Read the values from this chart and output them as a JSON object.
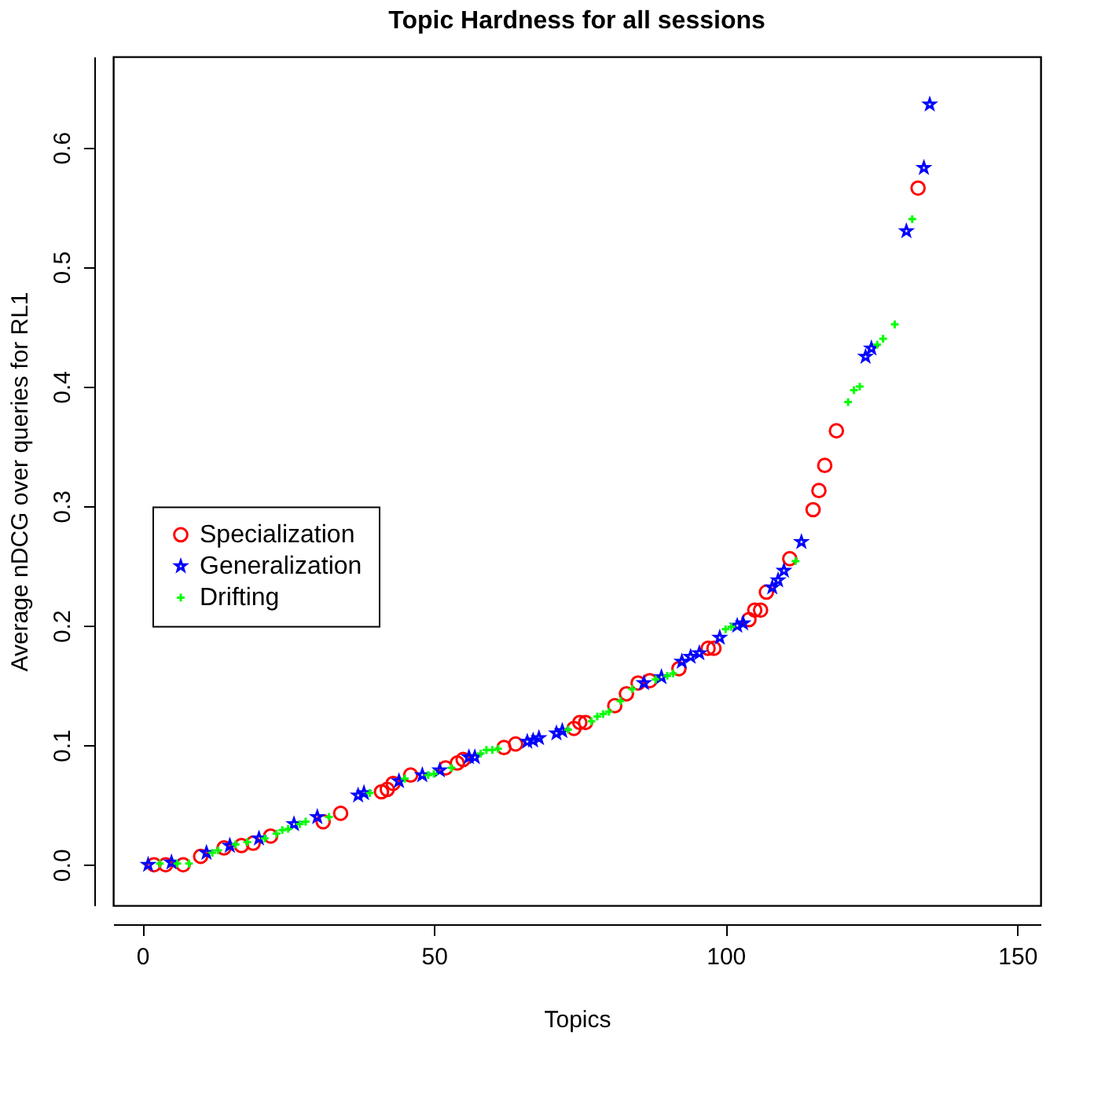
{
  "chart_data": {
    "type": "scatter",
    "title": "Topic Hardness for all sessions",
    "xlabel": "Topics",
    "ylabel": "Average nDCG over queries for RL1",
    "xlim": [
      -5,
      154
    ],
    "xticks": [
      0,
      50,
      100,
      150
    ],
    "ylim": [
      -0.034,
      0.676
    ],
    "yticks": [
      {
        "value": 0,
        "label": "0.0"
      },
      0.1,
      0.2,
      0.3,
      0.4,
      0.5,
      0.6
    ],
    "grid": false,
    "legend": "left",
    "series": [
      {
        "name": "Specialization",
        "color": "#ff0000",
        "marker": "circle",
        "x": [
          2,
          4,
          7,
          10,
          14,
          17,
          19,
          22,
          31,
          34,
          41,
          42,
          43,
          46,
          52,
          54,
          55,
          62,
          64,
          74,
          75,
          76,
          81,
          83,
          85,
          87,
          92,
          97,
          98,
          104,
          105,
          106,
          107,
          111,
          115,
          116,
          117,
          119,
          133
        ],
        "values": [
          0.0,
          0.0,
          0.0,
          0.007,
          0.014,
          0.016,
          0.018,
          0.024,
          0.036,
          0.043,
          0.061,
          0.063,
          0.068,
          0.075,
          0.081,
          0.085,
          0.088,
          0.098,
          0.101,
          0.114,
          0.119,
          0.119,
          0.133,
          0.143,
          0.152,
          0.154,
          0.164,
          0.181,
          0.181,
          0.205,
          0.213,
          0.213,
          0.228,
          0.256,
          0.297,
          0.313,
          0.334,
          0.363,
          0.566
        ]
      },
      {
        "name": "Generalization",
        "color": "#0000ff",
        "marker": "star",
        "x": [
          1,
          5,
          11,
          15,
          20,
          26,
          30,
          37,
          38,
          44,
          48,
          51,
          56,
          57,
          66,
          67,
          68,
          71,
          72,
          86,
          89,
          92.5,
          94,
          95.5,
          99,
          102,
          103,
          108,
          109,
          110,
          113,
          124,
          125,
          131,
          134,
          135
        ],
        "values": [
          0.0,
          0.002,
          0.01,
          0.016,
          0.022,
          0.034,
          0.04,
          0.058,
          0.06,
          0.07,
          0.075,
          0.079,
          0.09,
          0.09,
          0.103,
          0.104,
          0.106,
          0.11,
          0.112,
          0.152,
          0.157,
          0.17,
          0.174,
          0.177,
          0.19,
          0.2,
          0.202,
          0.232,
          0.238,
          0.246,
          0.27,
          0.425,
          0.432,
          0.53,
          0.583,
          0.636
        ]
      },
      {
        "name": "Drifting",
        "color": "#00ff00",
        "marker": "cross",
        "x": [
          3,
          6,
          8,
          12,
          13,
          16,
          18,
          21,
          23,
          24,
          25,
          27,
          28,
          32,
          39,
          45,
          49,
          50,
          53,
          58,
          59,
          60,
          61,
          73,
          77,
          78,
          79,
          80,
          82,
          84,
          88,
          90,
          91,
          100,
          101,
          112,
          121,
          122,
          123,
          126,
          127,
          129,
          132
        ],
        "values": [
          0.001,
          0.001,
          0.001,
          0.01,
          0.012,
          0.017,
          0.019,
          0.022,
          0.026,
          0.029,
          0.03,
          0.034,
          0.036,
          0.04,
          0.06,
          0.072,
          0.075,
          0.076,
          0.081,
          0.093,
          0.096,
          0.096,
          0.097,
          0.113,
          0.12,
          0.124,
          0.126,
          0.128,
          0.137,
          0.147,
          0.155,
          0.158,
          0.16,
          0.197,
          0.199,
          0.254,
          0.387,
          0.397,
          0.4,
          0.435,
          0.44,
          0.452,
          0.54
        ]
      }
    ]
  }
}
